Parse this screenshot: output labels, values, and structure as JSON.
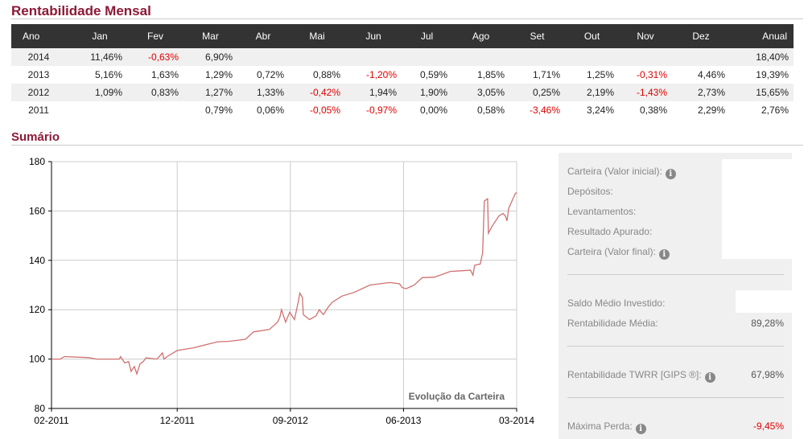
{
  "monthly": {
    "title": "Rentabilidade Mensal",
    "headers": [
      "Ano",
      "Jan",
      "Fev",
      "Mar",
      "Abr",
      "Mai",
      "Jun",
      "Jul",
      "Ago",
      "Set",
      "Out",
      "Nov",
      "Dez",
      "Anual"
    ],
    "rows": [
      [
        "2014",
        "11,46%",
        "-0,63%",
        "6,90%",
        "",
        "",
        "",
        "",
        "",
        "",
        "",
        "",
        "",
        "18,40%"
      ],
      [
        "2013",
        "5,16%",
        "1,63%",
        "1,29%",
        "0,72%",
        "0,88%",
        "-1,20%",
        "0,59%",
        "1,85%",
        "1,71%",
        "1,25%",
        "-0,31%",
        "4,46%",
        "19,39%"
      ],
      [
        "2012",
        "1,09%",
        "0,83%",
        "1,27%",
        "1,33%",
        "-0,42%",
        "1,94%",
        "1,90%",
        "3,05%",
        "0,25%",
        "2,19%",
        "-1,43%",
        "2,73%",
        "15,65%"
      ],
      [
        "2011",
        "",
        "",
        "0,79%",
        "0,06%",
        "-0,05%",
        "-0,97%",
        "0,00%",
        "0,58%",
        "-3,46%",
        "3,24%",
        "0,38%",
        "2,29%",
        "2,76%"
      ]
    ],
    "negative_color": "#e00000",
    "header_bg": "#333333",
    "title_color": "#8b1a36"
  },
  "summary": {
    "title": "Sumário",
    "carteira_inicial": "Carteira (Valor inicial):",
    "depositos": "Depósitos:",
    "levantamentos": "Levantamentos:",
    "resultado": "Resultado Apurado:",
    "carteira_final": "Carteira (Valor final):",
    "saldo_medio": "Saldo Médio Investido:",
    "rent_media_label": "Rentabilidade Média:",
    "rent_media_value": "89,28%",
    "twrr_label": "Rentabilidade TWRR [GIPS ®]:",
    "twrr_value": "67,98%",
    "max_perda_label": "Máxima Perda:",
    "max_perda_value": "-9,45%",
    "info_icon": "i"
  },
  "chart_data": {
    "type": "line",
    "title": "Evolução da Carteira",
    "xlabel": "",
    "ylabel": "",
    "ylim": [
      80,
      180
    ],
    "yticks": [
      80,
      100,
      120,
      140,
      160,
      180
    ],
    "xlim": [
      "2011-02-01",
      "2014-03-01"
    ],
    "xticks": [
      "02-2011",
      "12-2011",
      "09-2012",
      "06-2013",
      "03-2014"
    ],
    "grid": true,
    "line_color": "#d07070",
    "points": [
      [
        "2011-02-01",
        100
      ],
      [
        "2011-02-22",
        100
      ],
      [
        "2011-03-02",
        101
      ],
      [
        "2011-04-30",
        100.6
      ],
      [
        "2011-05-19",
        100
      ],
      [
        "2011-07-13",
        100
      ],
      [
        "2011-07-16",
        101
      ],
      [
        "2011-07-26",
        98.5
      ],
      [
        "2011-08-05",
        99
      ],
      [
        "2011-08-11",
        95
      ],
      [
        "2011-08-19",
        97
      ],
      [
        "2011-08-25",
        94
      ],
      [
        "2011-09-02",
        98
      ],
      [
        "2011-09-10",
        99
      ],
      [
        "2011-09-17",
        100.5
      ],
      [
        "2011-10-13",
        100
      ],
      [
        "2011-10-26",
        102.5
      ],
      [
        "2011-10-30",
        100
      ],
      [
        "2011-11-07",
        101
      ],
      [
        "2011-12-01",
        103.5
      ],
      [
        "2012-01-09",
        104.5
      ],
      [
        "2012-03-07",
        107
      ],
      [
        "2012-04-05",
        107.2
      ],
      [
        "2012-05-14",
        108
      ],
      [
        "2012-06-03",
        111
      ],
      [
        "2012-07-11",
        112
      ],
      [
        "2012-07-31",
        115
      ],
      [
        "2012-08-06",
        117
      ],
      [
        "2012-08-10",
        120
      ],
      [
        "2012-08-20",
        115
      ],
      [
        "2012-08-30",
        119
      ],
      [
        "2012-09-11",
        116
      ],
      [
        "2012-09-20",
        123
      ],
      [
        "2012-09-24",
        126.7
      ],
      [
        "2012-09-30",
        125
      ],
      [
        "2012-10-02",
        118
      ],
      [
        "2012-10-17",
        116
      ],
      [
        "2012-11-02",
        117.5
      ],
      [
        "2012-11-10",
        120
      ],
      [
        "2012-11-20",
        118
      ],
      [
        "2012-12-01",
        121
      ],
      [
        "2012-12-11",
        123
      ],
      [
        "2013-01-04",
        125.5
      ],
      [
        "2013-02-03",
        127
      ],
      [
        "2013-03-11",
        130
      ],
      [
        "2013-04-29",
        131
      ],
      [
        "2013-05-22",
        130.5
      ],
      [
        "2013-05-28",
        129
      ],
      [
        "2013-06-07",
        128.5
      ],
      [
        "2013-06-27",
        130
      ],
      [
        "2013-07-16",
        133
      ],
      [
        "2013-08-15",
        133.2
      ],
      [
        "2013-09-23",
        135.5
      ],
      [
        "2013-10-22",
        135.8
      ],
      [
        "2013-11-11",
        136
      ],
      [
        "2013-11-17",
        134
      ],
      [
        "2013-11-21",
        138
      ],
      [
        "2013-12-04",
        138.5
      ],
      [
        "2013-12-10",
        143
      ],
      [
        "2013-12-14",
        164
      ],
      [
        "2013-12-22",
        165
      ],
      [
        "2013-12-24",
        151
      ],
      [
        "2014-01-03",
        154
      ],
      [
        "2014-01-19",
        158
      ],
      [
        "2014-01-29",
        159
      ],
      [
        "2014-02-04",
        158
      ],
      [
        "2014-02-08",
        156
      ],
      [
        "2014-02-12",
        161
      ],
      [
        "2014-02-28",
        167
      ],
      [
        "2014-03-01",
        167.5
      ]
    ]
  }
}
